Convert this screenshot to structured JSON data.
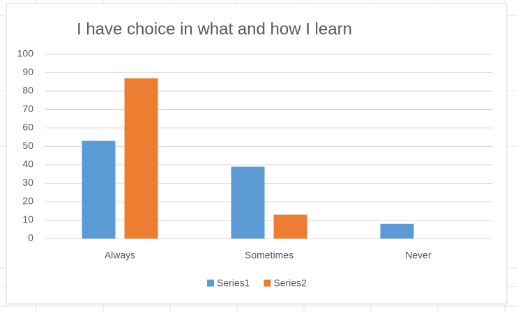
{
  "chart_data": {
    "type": "bar",
    "title": "I have choice in what and how I learn",
    "categories": [
      "Always",
      "Sometimes",
      "Never"
    ],
    "series": [
      {
        "name": "Series1",
        "color": "#5b9bd5",
        "values": [
          53,
          39,
          8
        ]
      },
      {
        "name": "Series2",
        "color": "#ed7d31",
        "values": [
          87,
          13,
          0
        ]
      }
    ],
    "ylim": [
      0,
      100
    ],
    "yticks": [
      0,
      10,
      20,
      30,
      40,
      50,
      60,
      70,
      80,
      90,
      100
    ],
    "grid": true,
    "legend": "bottom"
  }
}
